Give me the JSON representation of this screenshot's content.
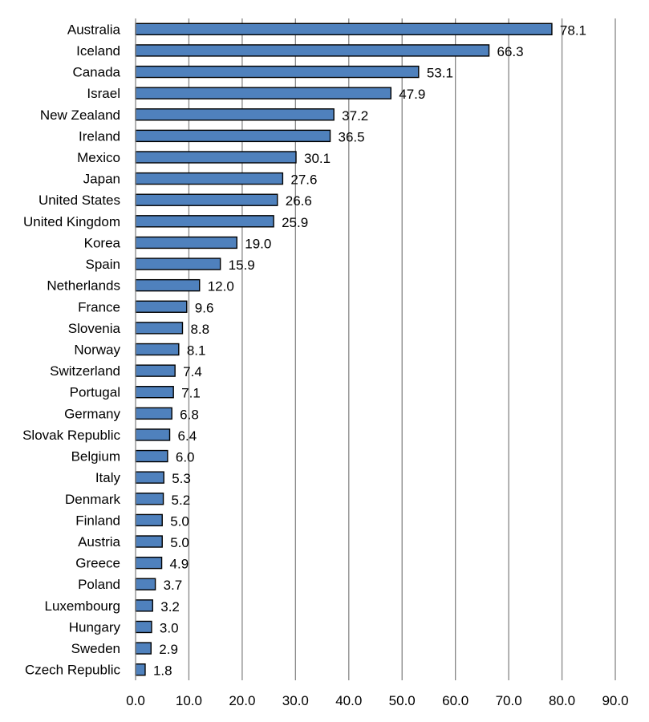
{
  "chart_data": {
    "type": "bar",
    "orientation": "horizontal",
    "title": "",
    "xlabel": "",
    "ylabel": "",
    "xlim": [
      0,
      90
    ],
    "x_ticks": [
      0,
      10,
      20,
      30,
      40,
      50,
      60,
      70,
      80,
      90
    ],
    "x_tick_labels": [
      "0.0",
      "10.0",
      "20.0",
      "30.0",
      "40.0",
      "50.0",
      "60.0",
      "70.0",
      "80.0",
      "90.0"
    ],
    "grid": "vertical",
    "legend": "none",
    "bar_color": "#4f81bd",
    "bar_edge_color": "#000000",
    "grid_color": "#868686",
    "categories": [
      "Australia",
      "Iceland",
      "Canada",
      "Israel",
      "New Zealand",
      "Ireland",
      "Mexico",
      "Japan",
      "United States",
      "United Kingdom",
      "Korea",
      "Spain",
      "Netherlands",
      "France",
      "Slovenia",
      "Norway",
      "Switzerland",
      "Portugal",
      "Germany",
      "Slovak Republic",
      "Belgium",
      "Italy",
      "Denmark",
      "Finland",
      "Austria",
      "Greece",
      "Poland",
      "Luxembourg",
      "Hungary",
      "Sweden",
      "Czech Republic"
    ],
    "values": [
      78.1,
      66.3,
      53.1,
      47.9,
      37.2,
      36.5,
      30.1,
      27.6,
      26.6,
      25.9,
      19.0,
      15.9,
      12.0,
      9.6,
      8.8,
      8.1,
      7.4,
      7.1,
      6.8,
      6.4,
      6.0,
      5.3,
      5.2,
      5.0,
      5.0,
      4.9,
      3.7,
      3.2,
      3.0,
      2.9,
      1.8
    ],
    "data_labels": [
      "78.1",
      "66.3",
      "53.1",
      "47.9",
      "37.2",
      "36.5",
      "30.1",
      "27.6",
      "26.6",
      "25.9",
      "19.0",
      "15.9",
      "12.0",
      "9.6",
      "8.8",
      "8.1",
      "7.4",
      "7.1",
      "6.8",
      "6.4",
      "6.0",
      "5.3",
      "5.2",
      "5.0",
      "5.0",
      "4.9",
      "3.7",
      "3.2",
      "3.0",
      "2.9",
      "1.8"
    ]
  }
}
